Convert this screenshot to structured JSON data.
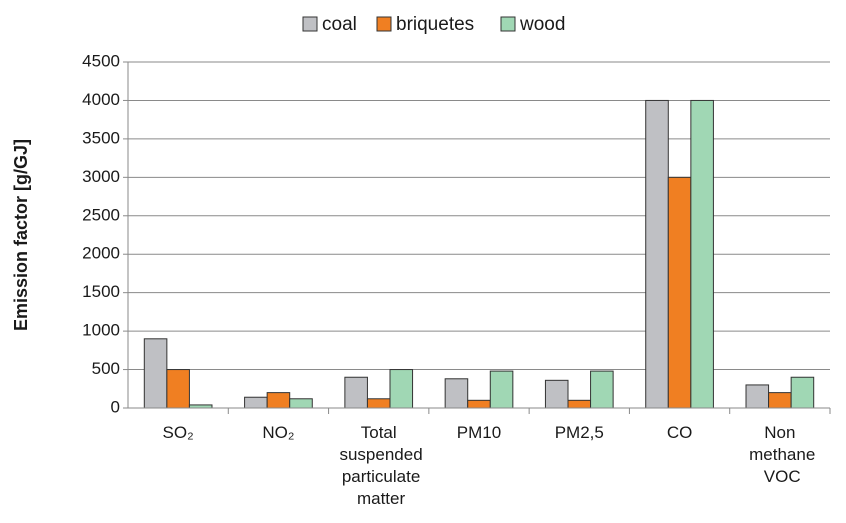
{
  "chart_data": {
    "type": "bar",
    "ylabel": "Emission factor [g/GJ]",
    "categories": [
      "SO₂",
      "NO₂",
      "Total suspended particulate matter",
      "PM10",
      "PM2,5",
      "CO",
      "Non methane VOC"
    ],
    "series": [
      {
        "name": "coal",
        "color": "#bfc0c4",
        "values": [
          900,
          140,
          400,
          380,
          360,
          4000,
          300
        ]
      },
      {
        "name": "briquetes",
        "color": "#f07f22",
        "values": [
          500,
          200,
          120,
          100,
          100,
          3000,
          200
        ]
      },
      {
        "name": "wood",
        "color": "#a0d7b4",
        "values": [
          40,
          120,
          500,
          480,
          480,
          4000,
          400
        ]
      }
    ],
    "ylim": [
      0,
      4500
    ],
    "yticks": [
      0,
      500,
      1000,
      1500,
      2000,
      2500,
      3000,
      3500,
      4000,
      4500
    ],
    "grid": true,
    "legend": "top"
  }
}
